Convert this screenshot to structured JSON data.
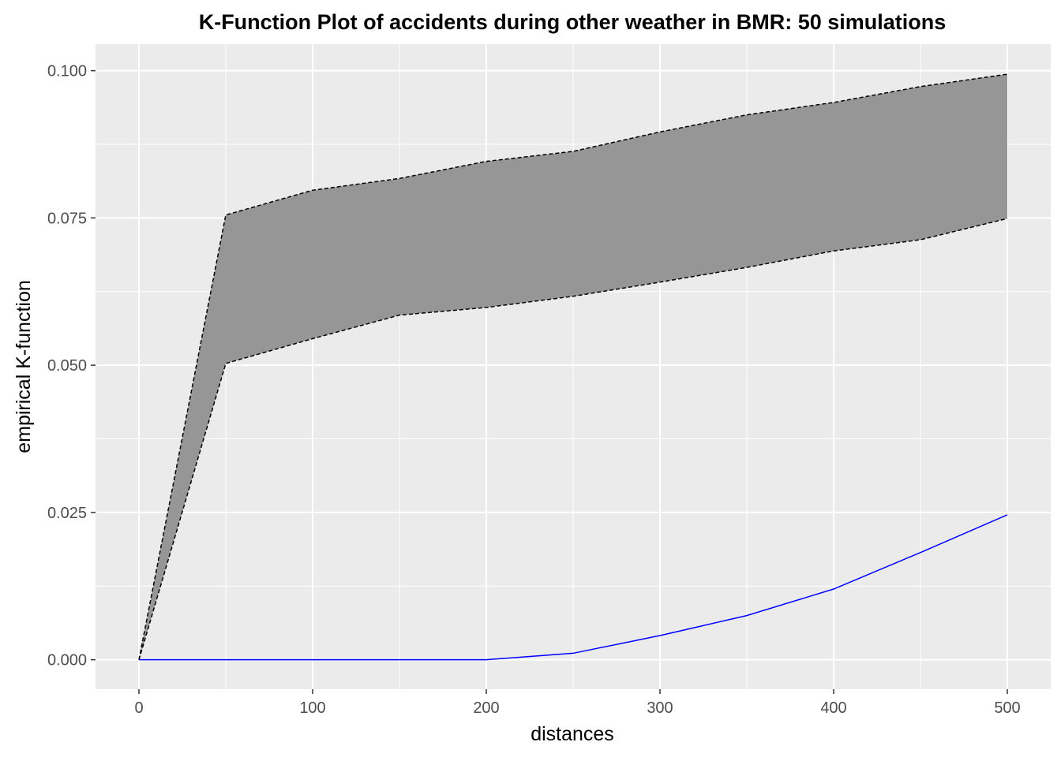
{
  "chart_data": {
    "type": "line",
    "title": "K-Function Plot of accidents during other weather in BMR: 50 simulations",
    "xlabel": "distances",
    "ylabel": "empirical K-function",
    "xlim": [
      -25,
      525
    ],
    "ylim": [
      -0.005,
      0.1045
    ],
    "xticks": [
      0,
      100,
      200,
      300,
      400,
      500
    ],
    "xtick_labels": [
      "0",
      "100",
      "200",
      "300",
      "400",
      "500"
    ],
    "yticks": [
      0,
      0.025,
      0.05,
      0.075,
      0.1
    ],
    "ytick_labels": [
      "0.000",
      "0.025",
      "0.050",
      "0.075",
      "0.100"
    ],
    "grid": true,
    "x": [
      0,
      50,
      100,
      150,
      200,
      250,
      300,
      350,
      400,
      450,
      500
    ],
    "envelope": {
      "upper": [
        0,
        0.0755,
        0.0797,
        0.0817,
        0.0846,
        0.0863,
        0.0896,
        0.0925,
        0.0946,
        0.0973,
        0.0994
      ],
      "lower": [
        0,
        0.0503,
        0.0545,
        0.0585,
        0.0598,
        0.0617,
        0.0641,
        0.0666,
        0.0694,
        0.0713,
        0.0749
      ],
      "fill_color": "#969696",
      "line_color": "#000000"
    },
    "series": [
      {
        "values": [
          0,
          0,
          0,
          0,
          0,
          0.0011,
          0.0041,
          0.0075,
          0.012,
          0.0182,
          0.0246
        ],
        "color": "#0000ff"
      }
    ],
    "panel_color": "#ebebeb",
    "gridline_color": "#ffffff"
  }
}
